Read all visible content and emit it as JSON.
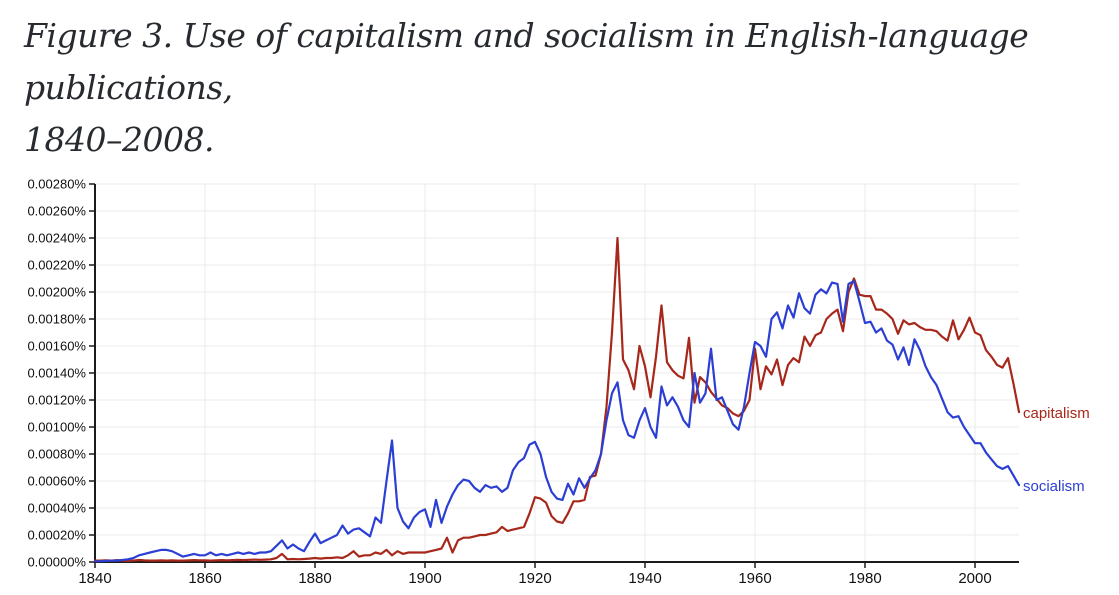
{
  "title": {
    "line1": "Figure 3. Use of capitalism and socialism in English-language publications,",
    "line2": "1840–2008."
  },
  "chart_data": {
    "type": "line",
    "title": "Figure 3. Use of capitalism and socialism in English-language publications, 1840–2008.",
    "grid": true,
    "legend_position": "line-end-labels",
    "xlim": [
      1840,
      2008
    ],
    "ylim": [
      0,
      0.0028
    ],
    "x_start": 1840,
    "x_step": 1,
    "x_ticks": [
      {
        "year": 1840,
        "label": "1840"
      },
      {
        "year": 1860,
        "label": "1860"
      },
      {
        "year": 1880,
        "label": "1880"
      },
      {
        "year": 1900,
        "label": "1900"
      },
      {
        "year": 1920,
        "label": "1920"
      },
      {
        "year": 1940,
        "label": "1940"
      },
      {
        "year": 1960,
        "label": "1960"
      },
      {
        "year": 1980,
        "label": "1980"
      },
      {
        "year": 2000,
        "label": "2000"
      }
    ],
    "y_ticks": [
      {
        "v": 0.0,
        "label": "0.00000%"
      },
      {
        "v": 0.0002,
        "label": "0.00020%"
      },
      {
        "v": 0.0004,
        "label": "0.00040%"
      },
      {
        "v": 0.0006,
        "label": "0.00060%"
      },
      {
        "v": 0.0008,
        "label": "0.00080%"
      },
      {
        "v": 0.001,
        "label": "0.00100%"
      },
      {
        "v": 0.0012,
        "label": "0.00120%"
      },
      {
        "v": 0.0014,
        "label": "0.00140%"
      },
      {
        "v": 0.0016,
        "label": "0.00160%"
      },
      {
        "v": 0.0018,
        "label": "0.00180%"
      },
      {
        "v": 0.002,
        "label": "0.00200%"
      },
      {
        "v": 0.0022,
        "label": "0.00220%"
      },
      {
        "v": 0.0024,
        "label": "0.00240%"
      },
      {
        "v": 0.0026,
        "label": "0.00260%"
      },
      {
        "v": 0.0028,
        "label": "0.00280%"
      }
    ],
    "series": [
      {
        "name": "capitalism",
        "label": "capitalism",
        "color": "#a7271a",
        "values": [
          1e-05,
          1e-05,
          1.2e-05,
          1e-05,
          1.4e-05,
          1e-05,
          8e-06,
          1e-05,
          1.5e-05,
          1.2e-05,
          1e-05,
          1e-05,
          1.2e-05,
          1e-05,
          1.2e-05,
          1e-05,
          1e-05,
          1.2e-05,
          1.4e-05,
          1.2e-05,
          1.2e-05,
          1e-05,
          1.2e-05,
          1.4e-05,
          1.2e-05,
          1.4e-05,
          1.6e-05,
          1.4e-05,
          1.6e-05,
          1.8e-05,
          1.6e-05,
          1.8e-05,
          2e-05,
          3e-05,
          6e-05,
          2e-05,
          2.2e-05,
          2e-05,
          2.2e-05,
          2.5e-05,
          3e-05,
          2.5e-05,
          3e-05,
          3e-05,
          3.5e-05,
          3e-05,
          5e-05,
          8e-05,
          4e-05,
          5e-05,
          5e-05,
          7e-05,
          6e-05,
          9e-05,
          5e-05,
          8e-05,
          6e-05,
          7e-05,
          7e-05,
          7e-05,
          7e-05,
          8e-05,
          9e-05,
          0.0001,
          0.00018,
          7e-05,
          0.00016,
          0.00018,
          0.00018,
          0.00019,
          0.0002,
          0.0002,
          0.00021,
          0.00022,
          0.00026,
          0.00023,
          0.00024,
          0.00025,
          0.00026,
          0.00036,
          0.00048,
          0.00047,
          0.00044,
          0.00034,
          0.0003,
          0.00029,
          0.00036,
          0.00045,
          0.00045,
          0.00046,
          0.00063,
          0.00064,
          0.0008,
          0.00115,
          0.0017,
          0.0024,
          0.0015,
          0.00142,
          0.00128,
          0.0016,
          0.00145,
          0.00122,
          0.00152,
          0.0019,
          0.00148,
          0.00142,
          0.00138,
          0.00136,
          0.00166,
          0.00118,
          0.00137,
          0.00133,
          0.00126,
          0.00121,
          0.00116,
          0.00114,
          0.0011,
          0.00108,
          0.00112,
          0.0012,
          0.00158,
          0.00128,
          0.00145,
          0.00139,
          0.0015,
          0.00131,
          0.00146,
          0.00151,
          0.00148,
          0.00167,
          0.0016,
          0.00168,
          0.0017,
          0.0018,
          0.00184,
          0.00187,
          0.00171,
          0.002,
          0.0021,
          0.00198,
          0.00197,
          0.00197,
          0.00187,
          0.00187,
          0.00184,
          0.0018,
          0.00169,
          0.00179,
          0.00176,
          0.00177,
          0.00174,
          0.00172,
          0.00172,
          0.00171,
          0.00167,
          0.00164,
          0.00179,
          0.00165,
          0.00172,
          0.00181,
          0.0017,
          0.00168,
          0.00157,
          0.00152,
          0.00146,
          0.00144,
          0.00151,
          0.00132,
          0.00111
        ]
      },
      {
        "name": "socialism",
        "label": "socialism",
        "color": "#2c3fd4",
        "values": [
          5e-06,
          6e-06,
          8e-06,
          1e-05,
          1e-05,
          1.5e-05,
          2e-05,
          3e-05,
          5e-05,
          6e-05,
          7e-05,
          8e-05,
          9e-05,
          9e-05,
          8e-05,
          6e-05,
          4e-05,
          5e-05,
          6e-05,
          5e-05,
          5e-05,
          7e-05,
          5e-05,
          6e-05,
          5e-05,
          6e-05,
          7e-05,
          6e-05,
          7e-05,
          6e-05,
          7e-05,
          7e-05,
          8e-05,
          0.00012,
          0.00016,
          0.0001,
          0.00013,
          0.0001,
          8e-05,
          0.00015,
          0.00021,
          0.00014,
          0.00016,
          0.00018,
          0.0002,
          0.00027,
          0.00021,
          0.00024,
          0.00025,
          0.00022,
          0.00019,
          0.00033,
          0.00029,
          0.0006,
          0.0009,
          0.0004,
          0.0003,
          0.00025,
          0.00033,
          0.00037,
          0.00039,
          0.00026,
          0.00046,
          0.00029,
          0.00041,
          0.0005,
          0.00057,
          0.00061,
          0.0006,
          0.00055,
          0.00052,
          0.00057,
          0.00055,
          0.00056,
          0.00052,
          0.00055,
          0.00068,
          0.00074,
          0.00077,
          0.00087,
          0.00089,
          0.0008,
          0.00063,
          0.00052,
          0.00047,
          0.00046,
          0.00058,
          0.0005,
          0.00062,
          0.00055,
          0.00062,
          0.00068,
          0.0008,
          0.00105,
          0.00125,
          0.00133,
          0.00105,
          0.00094,
          0.00092,
          0.00105,
          0.00114,
          0.001,
          0.00092,
          0.0013,
          0.00116,
          0.00122,
          0.00115,
          0.00105,
          0.001,
          0.0014,
          0.00118,
          0.00125,
          0.00158,
          0.0012,
          0.00122,
          0.00112,
          0.00102,
          0.00098,
          0.00115,
          0.0014,
          0.00163,
          0.0016,
          0.00152,
          0.0018,
          0.00185,
          0.00173,
          0.0019,
          0.00181,
          0.00199,
          0.00188,
          0.00184,
          0.00198,
          0.00202,
          0.00199,
          0.00207,
          0.00206,
          0.00178,
          0.00206,
          0.00208,
          0.00193,
          0.00177,
          0.00178,
          0.0017,
          0.00173,
          0.00164,
          0.00161,
          0.0015,
          0.00159,
          0.00146,
          0.00165,
          0.00157,
          0.00145,
          0.00137,
          0.00131,
          0.00121,
          0.00111,
          0.00107,
          0.00108,
          0.001,
          0.00094,
          0.00088,
          0.00088,
          0.00081,
          0.00076,
          0.00071,
          0.00069,
          0.00071,
          0.00064,
          0.00057
        ]
      }
    ]
  }
}
